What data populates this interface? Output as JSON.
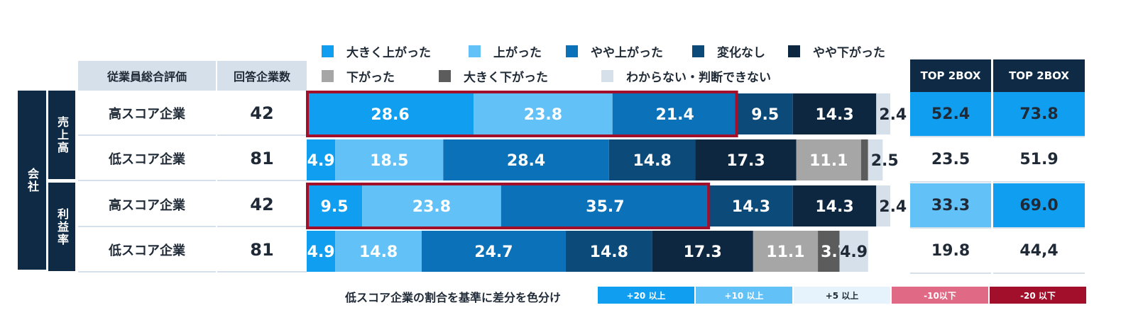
{
  "legend": [
    {
      "label": "大きく上がった",
      "color": "#0f9ef0"
    },
    {
      "label": "上がった",
      "color": "#62c1f7"
    },
    {
      "label": "やや上がった",
      "color": "#0b71b8"
    },
    {
      "label": "変化なし",
      "color": "#0c4a7a"
    },
    {
      "label": "やや下がった",
      "color": "#0e2740"
    },
    {
      "label": "下がった",
      "color": "#a6a6a6"
    },
    {
      "label": "大きく下がった",
      "color": "#5c5c5c"
    },
    {
      "label": "わからない・判断できない",
      "color": "#d6e0ea"
    }
  ],
  "headers": {
    "eval": "従業員総合評価",
    "count": "回答企業数",
    "top2box_a": "TOP 2BOX",
    "top2box_b": "TOP 2BOX"
  },
  "group": {
    "company": "会社",
    "sales": "売上高",
    "profit": "利益率"
  },
  "rows": [
    {
      "label": "高スコア企業",
      "count": "42",
      "top_a": "52.4",
      "top_b": "73.8"
    },
    {
      "label": "低スコア企業",
      "count": "81",
      "top_a": "23.5",
      "top_b": "51.9"
    },
    {
      "label": "高スコア企業",
      "count": "42",
      "top_a": "33.3",
      "top_b": "69.0"
    },
    {
      "label": "低スコア企業",
      "count": "81",
      "top_a": "19.8",
      "top_b": "44,4"
    }
  ],
  "scale": {
    "caption": "低スコア企業の割合を基準に差分を色分け",
    "items": [
      {
        "label": "+20 以上",
        "bg": "#0f9ef0",
        "fg": "#ffffff"
      },
      {
        "label": "+10 以上",
        "bg": "#62c1f7",
        "fg": "#ffffff"
      },
      {
        "label": "+5 以上",
        "bg": "#e7f3fc",
        "fg": "#1f2a36"
      },
      {
        "label": "-10以下",
        "bg": "#e06a85",
        "fg": "#ffffff"
      },
      {
        "label": "-20 以下",
        "bg": "#a10f2b",
        "fg": "#ffffff"
      }
    ]
  },
  "chart_data": {
    "type": "bar",
    "stacked": true,
    "orientation": "horizontal",
    "categories": [
      "売上高 高スコア企業",
      "売上高 低スコア企業",
      "利益率 高スコア企業",
      "利益率 低スコア企業"
    ],
    "series": [
      {
        "name": "大きく上がった",
        "values": [
          28.6,
          4.9,
          9.5,
          4.9
        ]
      },
      {
        "name": "上がった",
        "values": [
          23.8,
          18.5,
          23.8,
          14.8
        ]
      },
      {
        "name": "やや上がった",
        "values": [
          21.4,
          28.4,
          35.7,
          24.7
        ]
      },
      {
        "name": "変化なし",
        "values": [
          9.5,
          14.8,
          14.3,
          14.8
        ]
      },
      {
        "name": "やや下がった",
        "values": [
          14.3,
          17.3,
          14.3,
          17.3
        ]
      },
      {
        "name": "下がった",
        "values": [
          0,
          11.1,
          0,
          11.1
        ]
      },
      {
        "name": "大きく下がった",
        "values": [
          0,
          1.2,
          0,
          3.7
        ]
      },
      {
        "name": "わからない・判断できない",
        "values": [
          2.4,
          2.5,
          2.4,
          4.9
        ]
      }
    ],
    "highlight_top": [
      true,
      false,
      true,
      false
    ],
    "xlim": [
      0,
      100
    ]
  }
}
